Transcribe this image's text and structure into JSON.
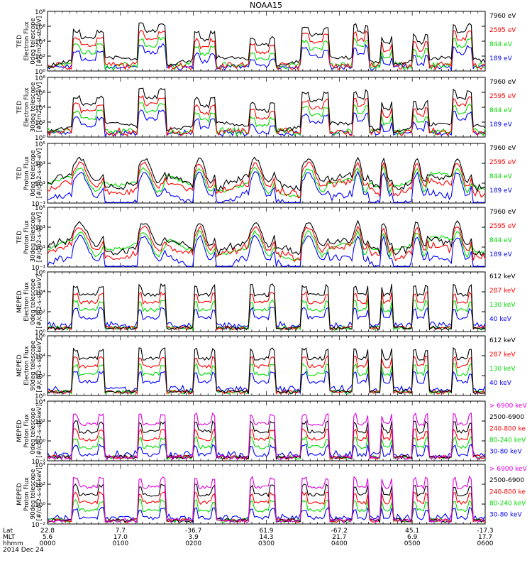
{
  "title": "NOAA15",
  "colors": {
    "blue": "#0000ff",
    "red": "#ff0000",
    "green": "#00dd00",
    "black": "#000000",
    "magenta": "#dd00dd",
    "ink": "#000000"
  },
  "panels": [
    {
      "instrument": "TED",
      "ylabel": [
        "Electron Flux",
        "0deg telescope",
        "[#/cm2-s-str-eV]"
      ],
      "yticks": [
        "10⁰",
        "10²",
        "10⁴",
        "10⁶",
        "10⁸"
      ],
      "channels": [
        {
          "label": "7960 eV",
          "color": "black"
        },
        {
          "label": "2595 eV",
          "color": "red"
        },
        {
          "label": "844 eV",
          "color": "green"
        },
        {
          "label": "189 eV",
          "color": "blue"
        }
      ]
    },
    {
      "instrument": "TED",
      "ylabel": [
        "Electron Flux",
        "30deg telescope",
        "[#/cm2-s-str-eV]"
      ],
      "yticks": [
        "10⁰",
        "10²",
        "10⁴",
        "10⁶",
        "10⁸"
      ],
      "channels": [
        {
          "label": "7960 eV",
          "color": "black"
        },
        {
          "label": "2595 eV",
          "color": "red"
        },
        {
          "label": "844 eV",
          "color": "green"
        },
        {
          "label": "189 eV",
          "color": "blue"
        }
      ]
    },
    {
      "instrument": "TED",
      "ylabel": [
        "Proton Flux",
        "0deg telescope",
        "[#/cm2-s-str-eV]"
      ],
      "yticks": [
        "10⁻¹",
        "10¹",
        "10³",
        "10⁵"
      ],
      "channels": [
        {
          "label": "7960 eV",
          "color": "black"
        },
        {
          "label": "2595 eV",
          "color": "red"
        },
        {
          "label": "844 eV",
          "color": "green"
        },
        {
          "label": "189 eV",
          "color": "blue"
        }
      ]
    },
    {
      "instrument": "TED",
      "ylabel": [
        "Proton Flux",
        "30deg telescope",
        "[#/cm2-s-str-eV]"
      ],
      "yticks": [
        "10⁻¹",
        "10¹",
        "10³",
        "10⁵"
      ],
      "channels": [
        {
          "label": "7960 eV",
          "color": "black"
        },
        {
          "label": "2595 eV",
          "color": "red"
        },
        {
          "label": "844 eV",
          "color": "green"
        },
        {
          "label": "189 eV",
          "color": "blue"
        }
      ]
    },
    {
      "instrument": "MEPED",
      "ylabel": [
        "Electron Flux",
        "0deg telescope",
        "[#/cm2-s-str-keV]"
      ],
      "yticks": [
        "10⁰",
        "10²",
        "10⁴",
        "10⁶"
      ],
      "channels": [
        {
          "label": "612 keV",
          "color": "black"
        },
        {
          "label": "287 keV",
          "color": "red"
        },
        {
          "label": "130 keV",
          "color": "green"
        },
        {
          "label": "40 keV",
          "color": "blue"
        }
      ]
    },
    {
      "instrument": "MEPED",
      "ylabel": [
        "Electron Flux",
        "90deg telescope",
        "[#/cm2-s-str-keV]"
      ],
      "yticks": [
        "10⁰",
        "10²",
        "10⁴",
        "10⁶"
      ],
      "channels": [
        {
          "label": "612 keV",
          "color": "black"
        },
        {
          "label": "287 keV",
          "color": "red"
        },
        {
          "label": "130 keV",
          "color": "green"
        },
        {
          "label": "40 keV",
          "color": "blue"
        }
      ]
    },
    {
      "instrument": "MEPED",
      "ylabel": [
        "Proton Flux",
        "0deg telescope",
        "[#/cm2-s-str-keV]"
      ],
      "yticks": [
        "10⁻²",
        "10⁰",
        "10²",
        "10⁴"
      ],
      "channels": [
        {
          "label": "> 6900 keV",
          "color": "magenta"
        },
        {
          "label": "2500-6900",
          "color": "black"
        },
        {
          "label": "240-800 ke",
          "color": "red"
        },
        {
          "label": "80-240 keV",
          "color": "green"
        },
        {
          "label": "30-80 keV",
          "color": "blue"
        }
      ]
    },
    {
      "instrument": "MEPED",
      "ylabel": [
        "Proton Flux",
        "90deg telescope",
        "[#/cm2-s-str-keV]"
      ],
      "yticks": [
        "10⁻²",
        "10⁰",
        "10²",
        "10⁴"
      ],
      "channels": [
        {
          "label": "> 6900 keV",
          "color": "magenta"
        },
        {
          "label": "2500-6900",
          "color": "black"
        },
        {
          "label": "240-800 ke",
          "color": "red"
        },
        {
          "label": "80-240 keV",
          "color": "green"
        },
        {
          "label": "30-80 keV",
          "color": "blue"
        }
      ]
    }
  ],
  "xaxis": {
    "row_labels": [
      "Lat",
      "MLT",
      "hhmm",
      "2014 Dec 24"
    ],
    "ticks": [
      {
        "lat": "22.8",
        "mlt": "5.6",
        "hhmm": "0000"
      },
      {
        "lat": "7.7",
        "mlt": "17.0",
        "hhmm": "0100"
      },
      {
        "lat": "-36.7",
        "mlt": "3.9",
        "hhmm": "0200"
      },
      {
        "lat": "61.9",
        "mlt": "14.3",
        "hhmm": "0300"
      },
      {
        "lat": "-67.2",
        "mlt": "21.7",
        "hhmm": "0400"
      },
      {
        "lat": "45.1",
        "mlt": "6.9",
        "hhmm": "0500"
      },
      {
        "lat": "-17.3",
        "mlt": "17.7",
        "hhmm": "0600"
      }
    ]
  },
  "chart_data": {
    "type": "line",
    "title": "NOAA15",
    "x_time_range": [
      "0000",
      "0600"
    ],
    "passes_hhmm": [
      "0020",
      "0050",
      "0125",
      "0210",
      "0300",
      "0355",
      "0430",
      "0515",
      "0555"
    ],
    "series_summary": [
      {
        "panel": "TED Electron Flux 0deg",
        "log10_peak": [
          5,
          4.5,
          6,
          5.5,
          6.5,
          5,
          4,
          4,
          4.5
        ]
      },
      {
        "panel": "TED Electron Flux 30deg",
        "log10_peak": [
          5,
          4.5,
          6,
          5.5,
          6,
          5,
          4.5,
          4,
          4.5
        ]
      },
      {
        "panel": "TED Proton Flux 0deg",
        "log10_peak": [
          3.5,
          3,
          3.5,
          3,
          4,
          4,
          3,
          3,
          3
        ]
      },
      {
        "panel": "TED Proton Flux 30deg",
        "log10_peak": [
          3.5,
          3,
          3.5,
          3,
          4,
          4,
          3,
          3,
          3
        ]
      },
      {
        "panel": "MEPED Electron Flux 0deg",
        "log10_peak": [
          5,
          0,
          5,
          5,
          5.5,
          5,
          5,
          5,
          4
        ]
      },
      {
        "panel": "MEPED Electron Flux 90deg",
        "log10_peak": [
          5.5,
          5,
          5.5,
          5.5,
          5.5,
          5.5,
          5,
          5.5,
          5.5
        ]
      },
      {
        "panel": "MEPED Proton Flux 0deg",
        "log10_peak": [
          4,
          3,
          4,
          4,
          4,
          2,
          3,
          1,
          3
        ]
      },
      {
        "panel": "MEPED Proton Flux 90deg",
        "log10_peak": [
          4,
          4,
          4,
          4,
          4,
          3,
          3,
          1,
          3
        ]
      }
    ]
  }
}
